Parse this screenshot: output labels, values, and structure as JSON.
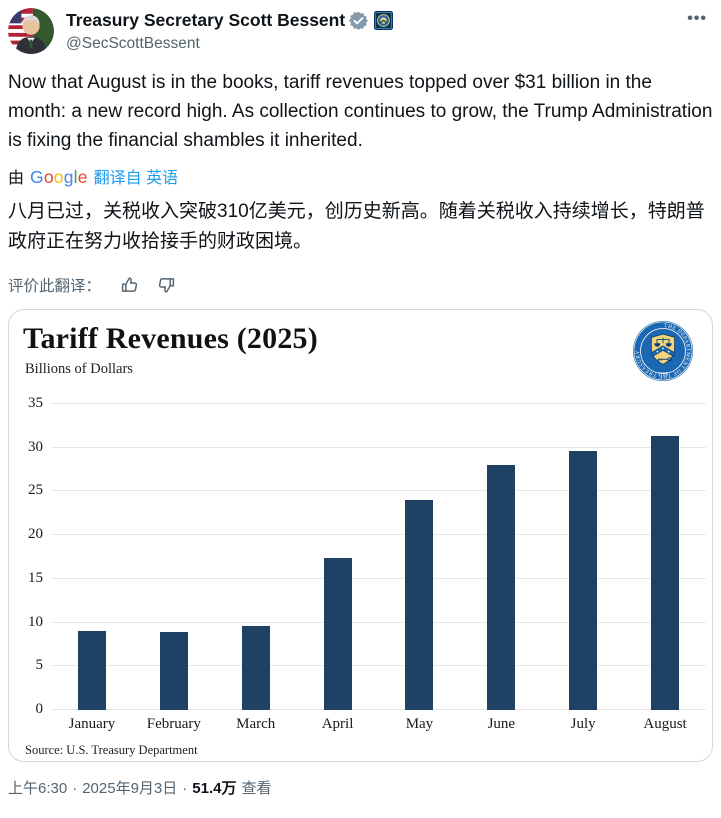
{
  "header": {
    "display_name": "Treasury Secretary Scott Bessent",
    "handle": "@SecScottBessent",
    "more_label": "•••",
    "verified_badge_color": "#829aab"
  },
  "tweet": {
    "text_en": "Now that August is in the books, tariff revenues topped over $31 billion in the month: a new record high. As collection continues to grow, the Trump Administration is fixing the financial shambles it inherited.",
    "translated_by_prefix": "由",
    "google_letters": [
      {
        "ch": "G",
        "color": "#4285F4"
      },
      {
        "ch": "o",
        "color": "#EA4335"
      },
      {
        "ch": "o",
        "color": "#FBBC05"
      },
      {
        "ch": "g",
        "color": "#4285F4"
      },
      {
        "ch": "l",
        "color": "#34A853"
      },
      {
        "ch": "e",
        "color": "#EA4335"
      }
    ],
    "translated_from_label": "翻译自 英语",
    "text_zh": "八月已过，关税收入突破310亿美元，创历史新高。随着关税收入持续增长，特朗普政府正在努力收拾接手的财政困境。",
    "rate_translation_label": "评价此翻译：",
    "link_color": "#1d9bf0"
  },
  "chart_data": {
    "type": "bar",
    "title": "Tariff Revenues (2025)",
    "subtitle": "Billions of Dollars",
    "categories": [
      "January",
      "February",
      "March",
      "April",
      "May",
      "June",
      "July",
      "August"
    ],
    "values": [
      9.0,
      8.9,
      9.6,
      17.4,
      24.0,
      28.0,
      29.6,
      31.3
    ],
    "ylim": [
      0,
      35
    ],
    "ytick_step": 5,
    "grid": true,
    "legend": "none",
    "bar_color": "#1e4164",
    "source": "Source: U.S. Treasury Department",
    "logo_text_ring": "THE DEPARTMENT OF THE TREASURY",
    "logo_year": "1789"
  },
  "footer": {
    "time": "上午6:30",
    "separator1": "·",
    "date": "2025年9月3日",
    "separator2": "·",
    "views_count": "51.4万",
    "views_label": "查看"
  }
}
